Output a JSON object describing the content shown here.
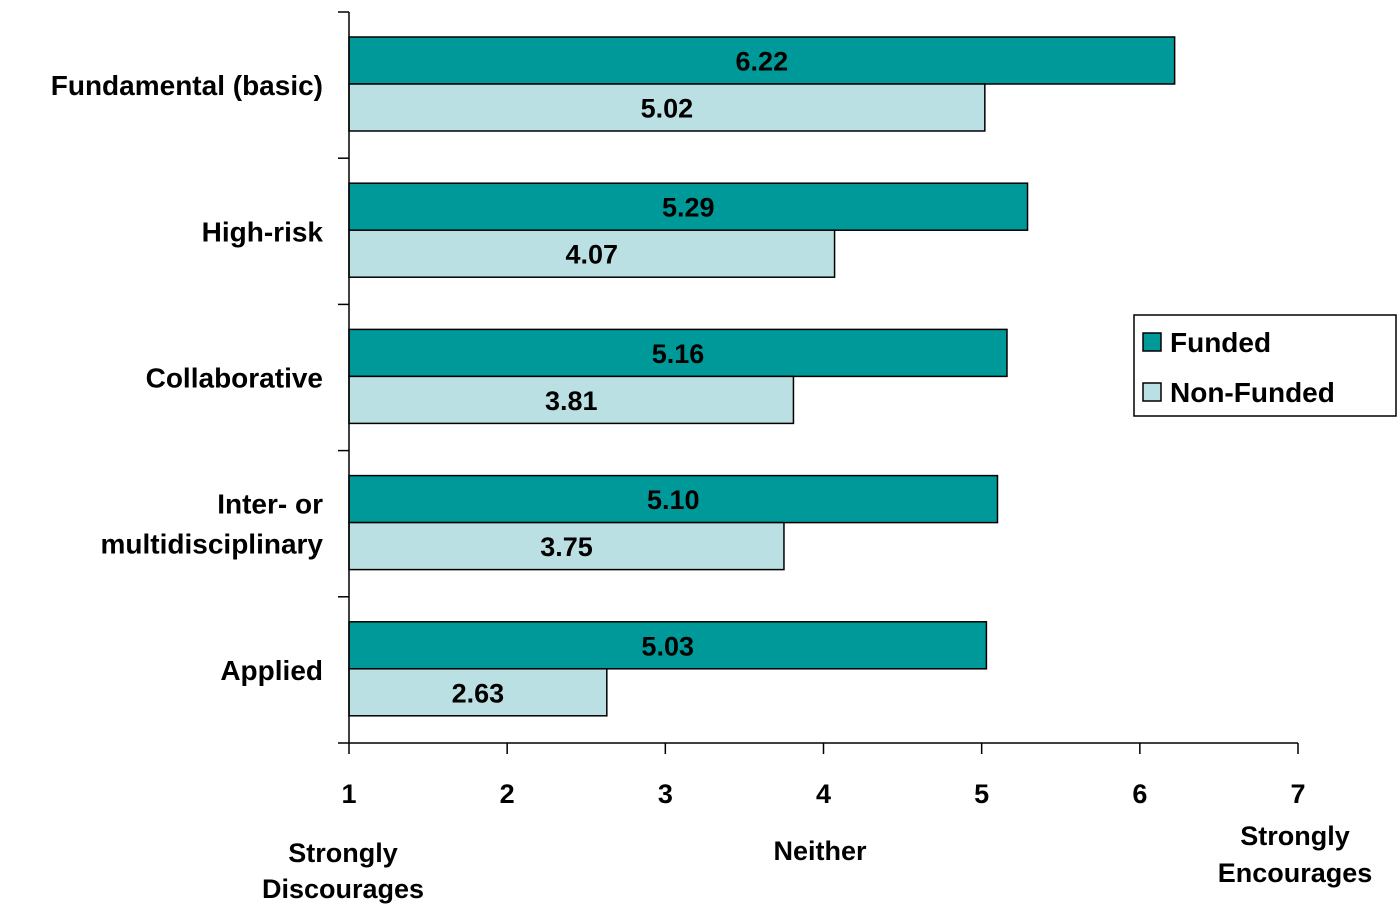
{
  "chart_data": {
    "type": "bar",
    "orientation": "horizontal",
    "categories": [
      "Fundamental (basic)",
      "High-risk",
      "Collaborative",
      "Inter- or multidisciplinary",
      "Applied"
    ],
    "category_lines": [
      [
        "Fundamental (basic)"
      ],
      [
        "High-risk"
      ],
      [
        "Collaborative"
      ],
      [
        "Inter- or",
        "multidisciplinary"
      ],
      [
        "Applied"
      ]
    ],
    "series": [
      {
        "name": "Funded",
        "color": "#009999",
        "values": [
          6.22,
          5.29,
          5.16,
          5.1,
          5.03
        ],
        "labels": [
          "6.22",
          "5.29",
          "5.16",
          "5.10",
          "5.03"
        ]
      },
      {
        "name": "Non-Funded",
        "color": "#BBE0E3",
        "values": [
          5.02,
          4.07,
          3.81,
          3.75,
          2.63
        ],
        "labels": [
          "5.02",
          "4.07",
          "3.81",
          "3.75",
          "2.63"
        ]
      }
    ],
    "xlim": [
      1,
      7
    ],
    "xticks": [
      "1",
      "2",
      "3",
      "4",
      "5",
      "6",
      "7"
    ],
    "scale_anchors": [
      {
        "value": 1,
        "lines": [
          "Strongly",
          "Discourages"
        ]
      },
      {
        "value": 4,
        "lines": [
          "Neither"
        ]
      },
      {
        "value": 7,
        "lines": [
          "Strongly",
          "Encourages"
        ]
      }
    ],
    "legend_position": "right",
    "grid": false
  }
}
